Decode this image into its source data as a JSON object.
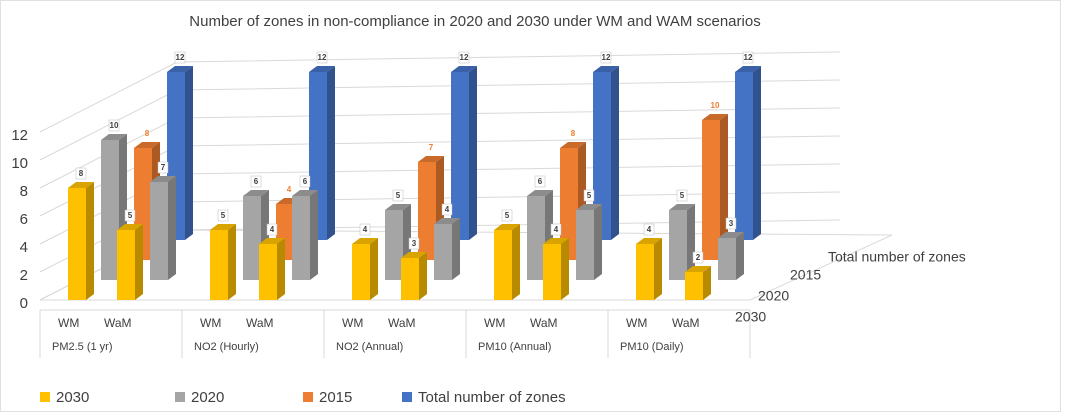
{
  "chart_data": {
    "type": "bar3d",
    "title": "Number of zones in non-compliance in 2020 and 2030  under WM and WAM scenarios",
    "groups": [
      "PM2.5 (1 yr)",
      "NO2 (Hourly)",
      "NO2 (Annual)",
      "PM10 (Annual)",
      "PM10 (Daily)"
    ],
    "categories": [
      "WM",
      "WaM",
      "WM",
      "WaM",
      "WM",
      "WaM",
      "WM",
      "WaM",
      "WM",
      "WaM"
    ],
    "series": [
      {
        "name": "2030",
        "color": "#ffc000",
        "values": [
          8,
          5,
          5,
          4,
          4,
          3,
          5,
          4,
          4,
          2
        ]
      },
      {
        "name": "2020",
        "color": "#a5a5a5",
        "values": [
          10,
          7,
          6,
          6,
          5,
          4,
          6,
          5,
          5,
          3
        ]
      },
      {
        "name": "2015",
        "color": "#ed7d31",
        "values": [
          8,
          null,
          4,
          null,
          7,
          null,
          8,
          null,
          10,
          null
        ]
      },
      {
        "name": "Total number of zones",
        "color": "#4472c4",
        "values": [
          12,
          null,
          12,
          null,
          12,
          null,
          12,
          null,
          12,
          null
        ]
      }
    ],
    "ylim": [
      0,
      12
    ],
    "yticks": [
      0,
      2,
      4,
      6,
      8,
      10,
      12
    ],
    "grid": true,
    "legend": "bottom"
  }
}
